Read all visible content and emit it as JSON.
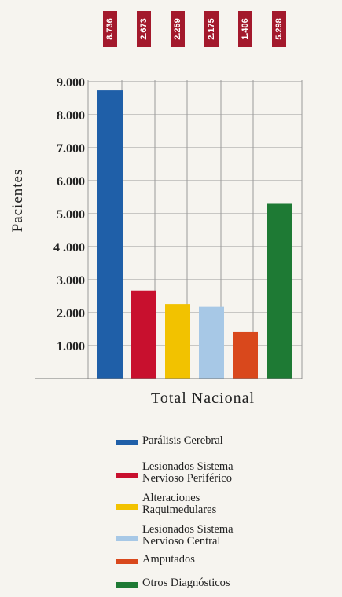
{
  "chart_data": {
    "type": "bar",
    "title": "",
    "xlabel": "Total Nacional",
    "ylabel": "Pacientes",
    "ylim": [
      0,
      9400
    ],
    "yticks": [
      {
        "value": 1000,
        "label": "1.000"
      },
      {
        "value": 2000,
        "label": "2.000"
      },
      {
        "value": 3000,
        "label": "3.000"
      },
      {
        "value": 4000,
        "label": "4 .000"
      },
      {
        "value": 5000,
        "label": "5.000"
      },
      {
        "value": 6000,
        "label": "6.000"
      },
      {
        "value": 7000,
        "label": "7.000"
      },
      {
        "value": 8000,
        "label": "8.000"
      },
      {
        "value": 9000,
        "label": "9.000"
      }
    ],
    "grid": true,
    "legend_position": "bottom",
    "data_label_color": "#a3192c",
    "series": [
      {
        "name": "Parálisis Cerebral",
        "value": 8736,
        "label": "8.736",
        "color": "#1f5fa8",
        "legend_lines": [
          "Parálisis Cerebral"
        ]
      },
      {
        "name": "Lesionados Sistema Nervioso Periférico",
        "value": 2673,
        "label": "2.673",
        "color": "#c8102e",
        "legend_lines": [
          "Lesionados Sistema",
          "Nervioso Periférico"
        ]
      },
      {
        "name": "Alteraciones Raquimedulares",
        "value": 2259,
        "label": "2.259",
        "color": "#f2c200",
        "legend_lines": [
          "Alteraciones",
          "Raquimedulares"
        ]
      },
      {
        "name": "Lesionados Sistema Nervioso Central",
        "value": 2175,
        "label": "2.175",
        "color": "#a7c8e6",
        "legend_lines": [
          "Lesionados Sistema",
          "Nervioso Central"
        ]
      },
      {
        "name": "Amputados",
        "value": 1406,
        "label": "1.406",
        "color": "#d9481c",
        "legend_lines": [
          "Amputados"
        ]
      },
      {
        "name": "Otros Diagnósticos",
        "value": 5298,
        "label": "5.298",
        "color": "#1e7a34",
        "legend_lines": [
          "Otros Diagnósticos"
        ]
      }
    ]
  }
}
